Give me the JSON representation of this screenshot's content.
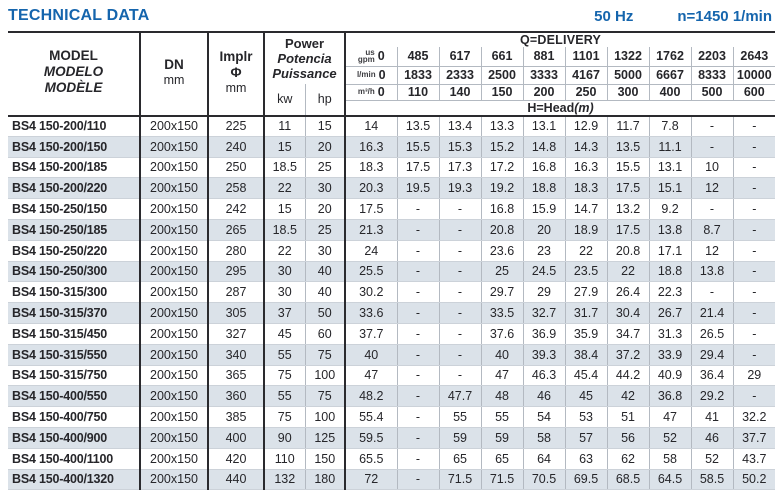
{
  "page": {
    "title": "TECHNICAL DATA",
    "frequency": "50 Hz",
    "speed": "n=1450 1/min"
  },
  "colors": {
    "accent_blue": "#1565ad",
    "row_stripe": "#dbe2e9",
    "border_dark": "#2a2a2e"
  },
  "table": {
    "header": {
      "model": {
        "line1": "MODEL",
        "line2": "MODELO",
        "line3": "MODÈLE"
      },
      "dn": {
        "label": "DN",
        "unit": "mm"
      },
      "impeller": {
        "line1": "Implr",
        "line2": "Φ",
        "unit": "mm"
      },
      "power": {
        "line1": "Power",
        "line2": "Potencia",
        "line3": "Puissance",
        "unit_kw": "kw",
        "unit_hp": "hp"
      },
      "delivery": {
        "title": "Q=DELIVERY",
        "rows": [
          {
            "unit_lines": [
              "us",
              "gpm"
            ],
            "values": [
              "0",
              "485",
              "617",
              "661",
              "881",
              "1101",
              "1322",
              "1762",
              "2203",
              "2643"
            ]
          },
          {
            "unit_lines": [
              "l/min"
            ],
            "values": [
              "0",
              "1833",
              "2333",
              "2500",
              "3333",
              "4167",
              "5000",
              "6667",
              "8333",
              "10000"
            ]
          },
          {
            "unit_lines": [
              "m³/h"
            ],
            "values": [
              "0",
              "110",
              "140",
              "150",
              "200",
              "250",
              "300",
              "400",
              "500",
              "600"
            ]
          }
        ],
        "head_label": "H=Head",
        "head_label_unit": "(m)"
      }
    },
    "rows": [
      {
        "model": "BS4 150-200/110",
        "dn": "200x150",
        "impeller": "225",
        "kw": "11",
        "hp": "15",
        "head": [
          "14",
          "13.5",
          "13.4",
          "13.3",
          "13.1",
          "12.9",
          "11.7",
          "7.8",
          "-",
          "-"
        ]
      },
      {
        "model": "BS4 150-200/150",
        "dn": "200x150",
        "impeller": "240",
        "kw": "15",
        "hp": "20",
        "head": [
          "16.3",
          "15.5",
          "15.3",
          "15.2",
          "14.8",
          "14.3",
          "13.5",
          "11.1",
          "-",
          "-"
        ]
      },
      {
        "model": "BS4 150-200/185",
        "dn": "200x150",
        "impeller": "250",
        "kw": "18.5",
        "hp": "25",
        "head": [
          "18.3",
          "17.5",
          "17.3",
          "17.2",
          "16.8",
          "16.3",
          "15.5",
          "13.1",
          "10",
          "-"
        ]
      },
      {
        "model": "BS4 150-200/220",
        "dn": "200x150",
        "impeller": "258",
        "kw": "22",
        "hp": "30",
        "head": [
          "20.3",
          "19.5",
          "19.3",
          "19.2",
          "18.8",
          "18.3",
          "17.5",
          "15.1",
          "12",
          "-"
        ]
      },
      {
        "model": "BS4 150-250/150",
        "dn": "200x150",
        "impeller": "242",
        "kw": "15",
        "hp": "20",
        "head": [
          "17.5",
          "-",
          "-",
          "16.8",
          "15.9",
          "14.7",
          "13.2",
          "9.2",
          "-",
          "-"
        ]
      },
      {
        "model": "BS4 150-250/185",
        "dn": "200x150",
        "impeller": "265",
        "kw": "18.5",
        "hp": "25",
        "head": [
          "21.3",
          "-",
          "-",
          "20.8",
          "20",
          "18.9",
          "17.5",
          "13.8",
          "8.7",
          "-"
        ]
      },
      {
        "model": "BS4 150-250/220",
        "dn": "200x150",
        "impeller": "280",
        "kw": "22",
        "hp": "30",
        "head": [
          "24",
          "-",
          "-",
          "23.6",
          "23",
          "22",
          "20.8",
          "17.1",
          "12",
          "-"
        ]
      },
      {
        "model": "BS4 150-250/300",
        "dn": "200x150",
        "impeller": "295",
        "kw": "30",
        "hp": "40",
        "head": [
          "25.5",
          "-",
          "-",
          "25",
          "24.5",
          "23.5",
          "22",
          "18.8",
          "13.8",
          "-"
        ]
      },
      {
        "model": "BS4 150-315/300",
        "dn": "200x150",
        "impeller": "287",
        "kw": "30",
        "hp": "40",
        "head": [
          "30.2",
          "-",
          "-",
          "29.7",
          "29",
          "27.9",
          "26.4",
          "22.3",
          "-",
          "-"
        ]
      },
      {
        "model": "BS4 150-315/370",
        "dn": "200x150",
        "impeller": "305",
        "kw": "37",
        "hp": "50",
        "head": [
          "33.6",
          "-",
          "-",
          "33.5",
          "32.7",
          "31.7",
          "30.4",
          "26.7",
          "21.4",
          "-"
        ]
      },
      {
        "model": "BS4 150-315/450",
        "dn": "200x150",
        "impeller": "327",
        "kw": "45",
        "hp": "60",
        "head": [
          "37.7",
          "-",
          "-",
          "37.6",
          "36.9",
          "35.9",
          "34.7",
          "31.3",
          "26.5",
          "-"
        ]
      },
      {
        "model": "BS4 150-315/550",
        "dn": "200x150",
        "impeller": "340",
        "kw": "55",
        "hp": "75",
        "head": [
          "40",
          "-",
          "-",
          "40",
          "39.3",
          "38.4",
          "37.2",
          "33.9",
          "29.4",
          "-"
        ]
      },
      {
        "model": "BS4 150-315/750",
        "dn": "200x150",
        "impeller": "365",
        "kw": "75",
        "hp": "100",
        "head": [
          "47",
          "-",
          "-",
          "47",
          "46.3",
          "45.4",
          "44.2",
          "40.9",
          "36.4",
          "29"
        ]
      },
      {
        "model": "BS4 150-400/550",
        "dn": "200x150",
        "impeller": "360",
        "kw": "55",
        "hp": "75",
        "head": [
          "48.2",
          "-",
          "47.7",
          "48",
          "46",
          "45",
          "42",
          "36.8",
          "29.2",
          "-"
        ]
      },
      {
        "model": "BS4 150-400/750",
        "dn": "200x150",
        "impeller": "385",
        "kw": "75",
        "hp": "100",
        "head": [
          "55.4",
          "-",
          "55",
          "55",
          "54",
          "53",
          "51",
          "47",
          "41",
          "32.2"
        ]
      },
      {
        "model": "BS4 150-400/900",
        "dn": "200x150",
        "impeller": "400",
        "kw": "90",
        "hp": "125",
        "head": [
          "59.5",
          "-",
          "59",
          "59",
          "58",
          "57",
          "56",
          "52",
          "46",
          "37.7"
        ]
      },
      {
        "model": "BS4 150-400/1100",
        "dn": "200x150",
        "impeller": "420",
        "kw": "110",
        "hp": "150",
        "head": [
          "65.5",
          "-",
          "65",
          "65",
          "64",
          "63",
          "62",
          "58",
          "52",
          "43.7"
        ]
      },
      {
        "model": "BS4 150-400/1320",
        "dn": "200x150",
        "impeller": "440",
        "kw": "132",
        "hp": "180",
        "head": [
          "72",
          "-",
          "71.5",
          "71.5",
          "70.5",
          "69.5",
          "68.5",
          "64.5",
          "58.5",
          "50.2"
        ]
      }
    ]
  }
}
